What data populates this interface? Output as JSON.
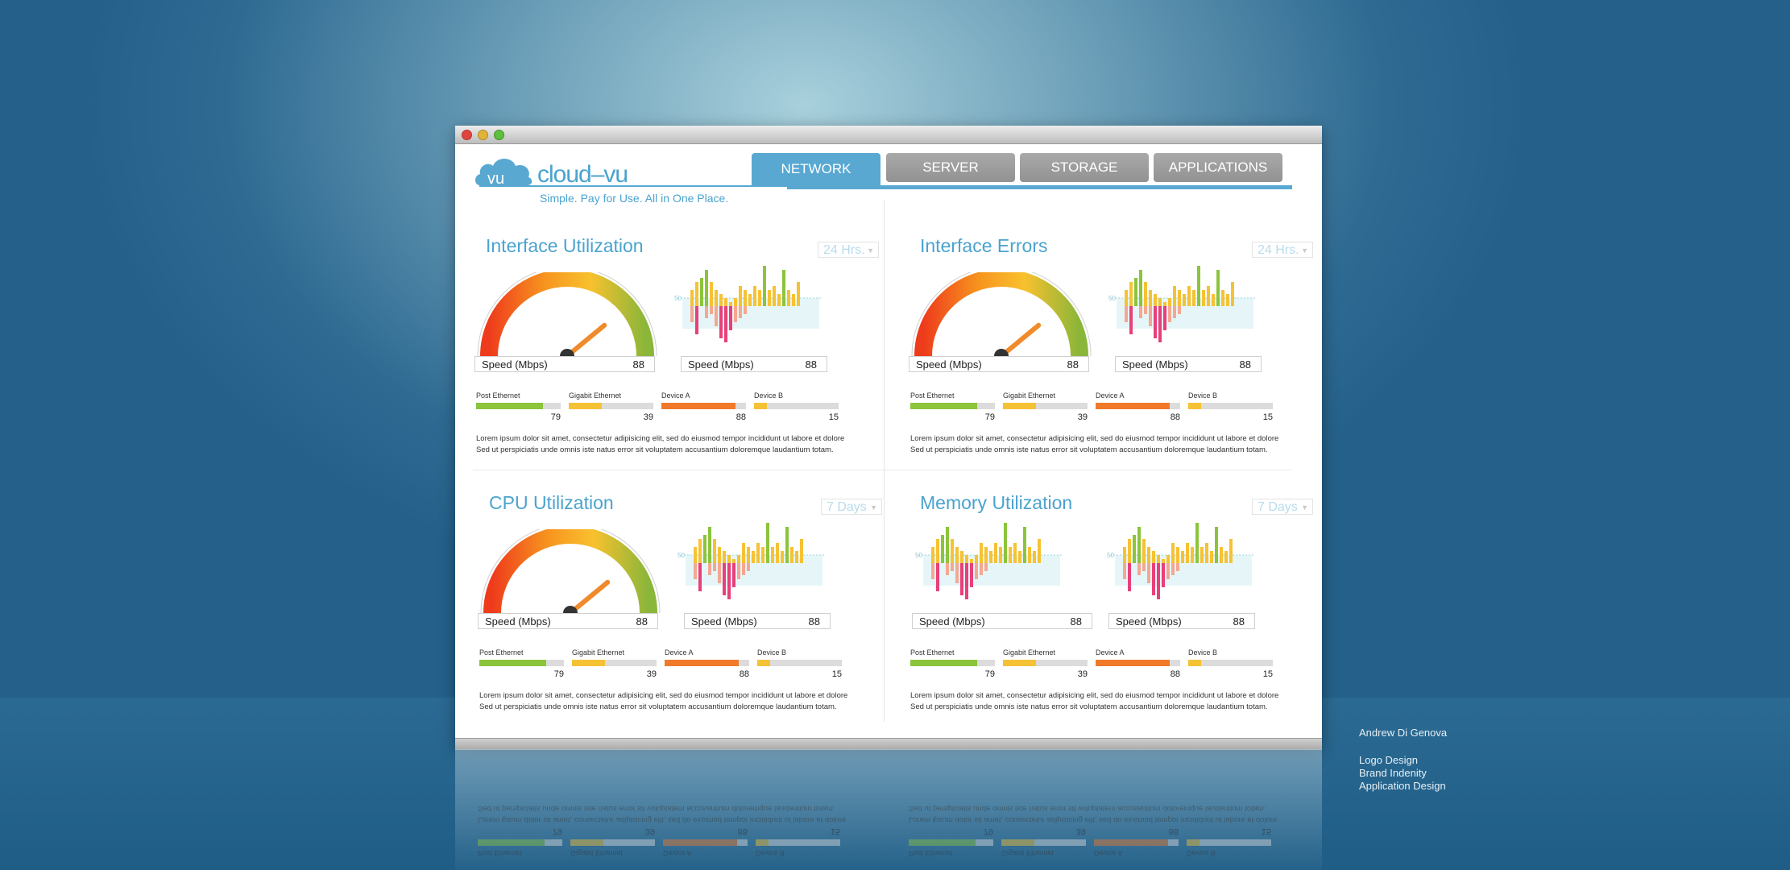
{
  "app": {
    "logo_text": "cloud–vu",
    "logo_badge": "vu",
    "tagline": "Simple. Pay for Use. All in One Place."
  },
  "tabs": [
    {
      "label": "NETWORK",
      "active": true
    },
    {
      "label": "SERVER",
      "active": false
    },
    {
      "label": "STORAGE",
      "active": false
    },
    {
      "label": "APPLICATIONS",
      "active": false
    }
  ],
  "colors": {
    "accent": "#58a8d2",
    "green": "#8cc43c",
    "yellow": "#f6c235",
    "orange": "#f07a2a",
    "pink": "#e8407a"
  },
  "panels": [
    {
      "title": "Interface Utilization",
      "range": "24 Hrs.",
      "speed_label": "Speed (Mbps)",
      "speed_value": "88",
      "gauge_level": 0.78,
      "stats": [
        {
          "label": "Post Ethernet",
          "value": 79,
          "color": "#8cc43c"
        },
        {
          "label": "Gigabit Ethernet",
          "value": 39,
          "color": "#f6c235"
        },
        {
          "label": "Device A",
          "value": 88,
          "color": "#f07a2a"
        },
        {
          "label": "Device B",
          "value": 15,
          "color": "#f6c235"
        }
      ],
      "description": "Lorem ipsum dolor sit amet, consectetur adipisicing elit, sed do eiusmod tempor incididunt ut labore et dolore Sed ut perspiciatis unde omnis iste natus error sit voluptatem accusantium doloremque laudantium totam."
    },
    {
      "title": "Interface Errors",
      "range": "24 Hrs.",
      "speed_label": "Speed (Mbps)",
      "speed_value": "88",
      "gauge_level": 0.78,
      "stats": [
        {
          "label": "Post Ethernet",
          "value": 79,
          "color": "#8cc43c"
        },
        {
          "label": "Gigabit Ethernet",
          "value": 39,
          "color": "#f6c235"
        },
        {
          "label": "Device A",
          "value": 88,
          "color": "#f07a2a"
        },
        {
          "label": "Device B",
          "value": 15,
          "color": "#f6c235"
        }
      ],
      "description": "Lorem ipsum dolor sit amet, consectetur adipisicing elit, sed do eiusmod tempor incididunt ut labore et dolore Sed ut perspiciatis unde omnis iste natus error sit voluptatem accusantium doloremque laudantium totam."
    },
    {
      "title": "CPU Utilization",
      "range": "7 Days",
      "speed_label": "Speed (Mbps)",
      "speed_value": "88",
      "gauge_level": 0.78,
      "stats": [
        {
          "label": "Post Ethernet",
          "value": 79,
          "color": "#8cc43c"
        },
        {
          "label": "Gigabit Ethernet",
          "value": 39,
          "color": "#f6c235"
        },
        {
          "label": "Device A",
          "value": 88,
          "color": "#f07a2a"
        },
        {
          "label": "Device B",
          "value": 15,
          "color": "#f6c235"
        }
      ],
      "description": "Lorem ipsum dolor sit amet, consectetur adipisicing elit, sed do eiusmod tempor incididunt ut labore et dolore Sed ut perspiciatis unde omnis iste natus error sit voluptatem accusantium doloremque laudantium totam."
    },
    {
      "title": "Memory Utilization",
      "range": "7 Days",
      "speed_label": "Speed (Mbps)",
      "speed_value": "88",
      "stats": [
        {
          "label": "Post Ethernet",
          "value": 79,
          "color": "#8cc43c"
        },
        {
          "label": "Gigabit Ethernet",
          "value": 39,
          "color": "#f6c235"
        },
        {
          "label": "Device A",
          "value": 88,
          "color": "#f07a2a"
        },
        {
          "label": "Device B",
          "value": 15,
          "color": "#f6c235"
        }
      ],
      "description": "Lorem ipsum dolor sit amet, consectetur adipisicing elit, sed do eiusmod tempor incididunt ut labore et dolore Sed ut perspiciatis unde omnis iste natus error sit voluptatem accusantium doloremque laudantium totam."
    }
  ],
  "chart_data": {
    "type": "bar",
    "baseline_label": "50",
    "positive": [
      4,
      6,
      7,
      9,
      6,
      4,
      3,
      2,
      1,
      2,
      5,
      4,
      3,
      5,
      4,
      10,
      4,
      5,
      3,
      9,
      4,
      3,
      6
    ],
    "negative": [
      4,
      7,
      0,
      3,
      2,
      5,
      8,
      9,
      6,
      4,
      3,
      2,
      0,
      0,
      0,
      0,
      0,
      0,
      0,
      0,
      0,
      0,
      0
    ]
  },
  "credits": {
    "author": "Andrew Di Genova",
    "lines": [
      "Logo Design",
      "Brand Indenity",
      "Application Design"
    ]
  }
}
